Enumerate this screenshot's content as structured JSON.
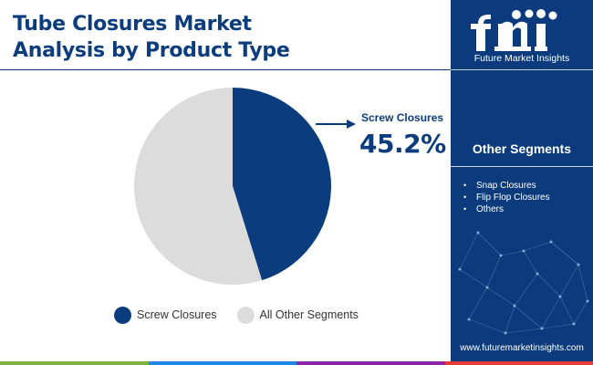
{
  "header": {
    "title_line1": "Tube Closures Market",
    "title_line2": "Analysis by Product Type"
  },
  "brand": {
    "logo_text": "fmi",
    "name": "Future Market Insights",
    "url": "www.futuremarketinsights.com"
  },
  "sidebar": {
    "title": "Other Segments",
    "items": [
      "Snap Closures",
      "Flip Flop Closures",
      "Others"
    ]
  },
  "callout": {
    "label": "Screw Closures",
    "value": "45.2%"
  },
  "colors": {
    "primary": "#0b3c7d",
    "secondary": "#dcdcdc",
    "sidebar": "#0b3b7c",
    "bottom_bar": [
      "#7cb342",
      "#1e88e5",
      "#8e24aa",
      "#e53935"
    ]
  },
  "chart_data": {
    "type": "pie",
    "title": "",
    "slices": [
      {
        "name": "Screw Closures",
        "value": 45.2,
        "color": "#0b3c7d"
      },
      {
        "name": "All Other Segments",
        "value": 54.8,
        "color": "#dcdcdc"
      }
    ],
    "start_angle": "top, clockwise",
    "legend_position": "bottom"
  }
}
